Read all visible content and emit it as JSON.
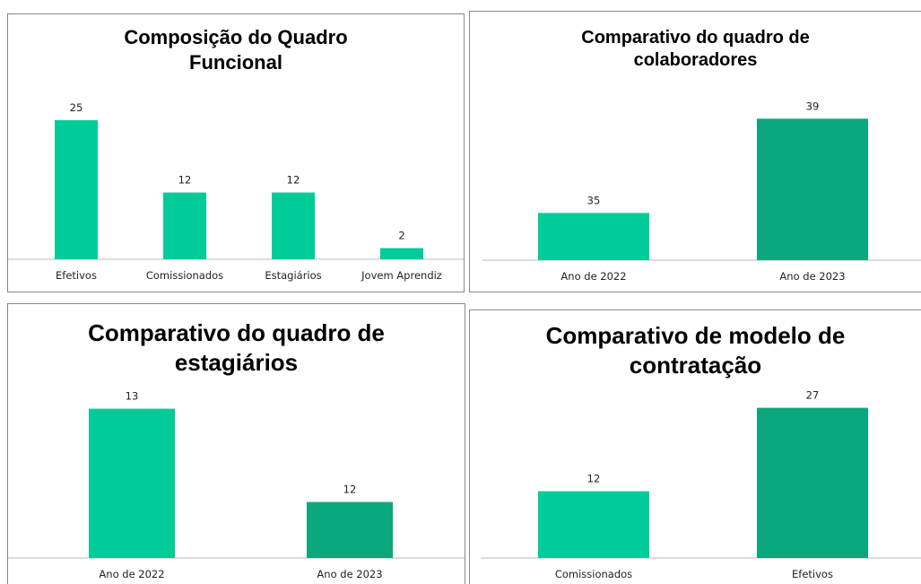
{
  "chart_data": [
    {
      "type": "bar",
      "title": "Composição do Quadro Funcional",
      "categories": [
        "Efetivos",
        "Comissionados",
        "Estagiários",
        "Jovem Aprendiz"
      ],
      "values": [
        25,
        12,
        12,
        2
      ],
      "colors": [
        "#00cc99",
        "#00cc99",
        "#00cc99",
        "#00cc99"
      ],
      "ylim": [
        0,
        30
      ]
    },
    {
      "type": "bar",
      "title": "Comparativo do quadro de colaboradores",
      "categories": [
        "Ano de 2022",
        "Ano de 2023"
      ],
      "values": [
        35,
        39
      ],
      "colors": [
        "#00cc99",
        "#0aa87c"
      ],
      "ylim": [
        33,
        40
      ]
    },
    {
      "type": "bar",
      "title": "Comparativo do quadro de estagiários",
      "categories": [
        "Ano de 2022",
        "Ano de 2023"
      ],
      "values": [
        13,
        12
      ],
      "colors": [
        "#00cc99",
        "#0aa87c"
      ],
      "ylim": [
        11.4,
        13.4
      ]
    },
    {
      "type": "bar",
      "title": "Comparativo de modelo de contratação",
      "categories": [
        "Comissionados",
        "Efetivos"
      ],
      "values": [
        12,
        27
      ],
      "colors": [
        "#00cc99",
        "#0aa87c"
      ],
      "ylim": [
        0,
        30
      ]
    }
  ]
}
